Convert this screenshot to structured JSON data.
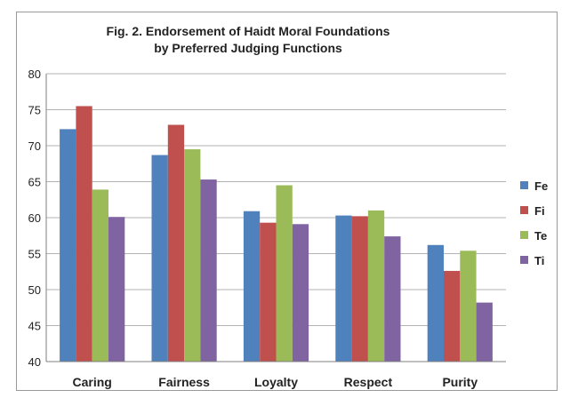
{
  "chart_data": {
    "type": "bar",
    "title_lines": [
      "Fig. 2. Endorsement of Haidt Moral Foundations",
      "by Preferred Judging Functions"
    ],
    "categories": [
      "Caring",
      "Fairness",
      "Loyalty",
      "Respect",
      "Purity"
    ],
    "series": [
      {
        "name": "Fe",
        "color": "#4f81bd",
        "values": [
          72.3,
          68.7,
          60.9,
          60.3,
          56.2
        ]
      },
      {
        "name": "Fi",
        "color": "#c0504d",
        "values": [
          75.5,
          72.9,
          59.3,
          60.2,
          52.6
        ]
      },
      {
        "name": "Te",
        "color": "#9bbb59",
        "values": [
          63.9,
          69.5,
          64.5,
          61.0,
          55.4
        ]
      },
      {
        "name": "Ti",
        "color": "#8064a2",
        "values": [
          60.1,
          65.3,
          59.1,
          57.4,
          48.2
        ]
      }
    ],
    "ylim": [
      40,
      80
    ],
    "yticks": [
      "40",
      "45",
      "50",
      "55",
      "60",
      "65",
      "70",
      "75",
      "80"
    ],
    "grid": true,
    "legend_position": "right"
  }
}
